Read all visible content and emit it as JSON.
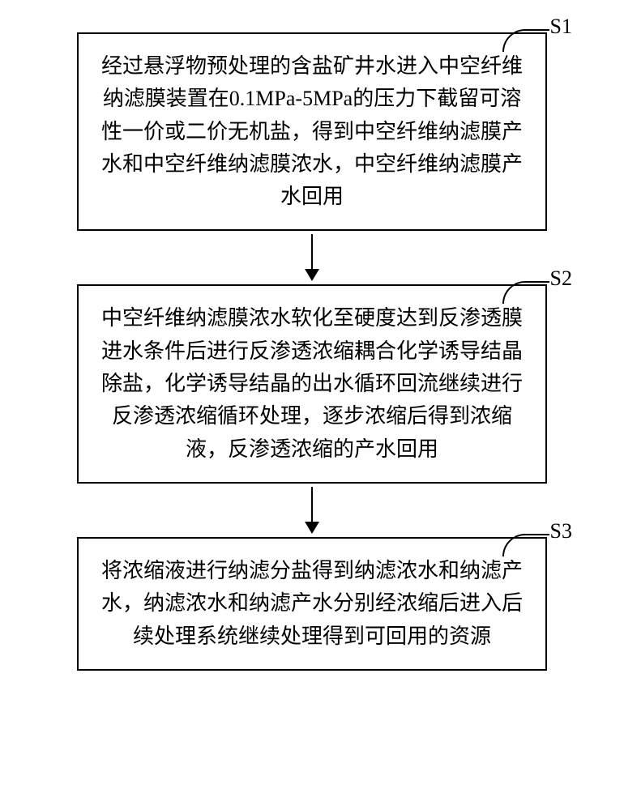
{
  "flow": {
    "steps": [
      {
        "label": "S1",
        "text": "经过悬浮物预处理的含盐矿井水进入中空纤维纳滤膜装置在0.1MPa-5MPa的压力下截留可溶性一价或二价无机盐，得到中空纤维纳滤膜产水和中空纤维纳滤膜浓水，中空纤维纳滤膜产水回用"
      },
      {
        "label": "S2",
        "text": "中空纤维纳滤膜浓水软化至硬度达到反渗透膜进水条件后进行反渗透浓缩耦合化学诱导结晶除盐，化学诱导结晶的出水循环回流继续进行反渗透浓缩循环处理，逐步浓缩后得到浓缩液，反渗透浓缩的产水回用"
      },
      {
        "label": "S3",
        "text": "将浓缩液进行纳滤分盐得到纳滤浓水和纳滤产水，纳滤浓水和纳滤产水分别经浓缩后进入后续处理系统继续处理得到可回用的资源"
      }
    ]
  },
  "style": {
    "box_border_color": "#000000",
    "box_background": "#ffffff",
    "text_color": "#000000",
    "font_size": 26,
    "arrow_color": "#000000",
    "page_background": "#ffffff"
  }
}
